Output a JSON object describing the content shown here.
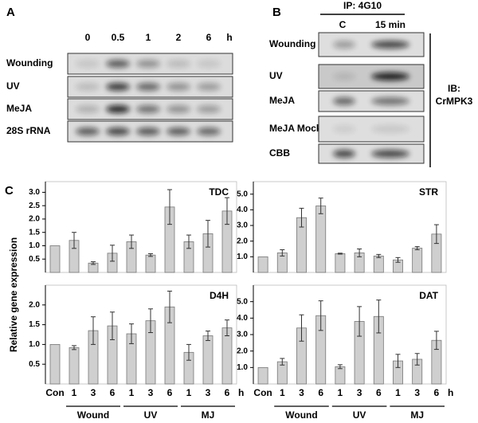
{
  "panels": {
    "A": {
      "label": "A",
      "columns": [
        "0",
        "0.5",
        "1",
        "2",
        "6"
      ],
      "unit": "h",
      "rows": [
        "Wounding",
        "UV",
        "MeJA",
        "28S rRNA"
      ]
    },
    "B": {
      "label": "B",
      "ip": "IP: 4G10",
      "columns": [
        "C",
        "15 min"
      ],
      "rows": [
        "Wounding",
        "UV",
        "MeJA",
        "MeJA Mock",
        "CBB"
      ],
      "ib": [
        "IB:",
        "CrMPK3"
      ]
    },
    "C": {
      "label": "C",
      "y_label": "Relative gene expression",
      "groups": [
        "Wound",
        "UV",
        "MJ"
      ]
    }
  },
  "chart_data": [
    {
      "type": "bar",
      "title": "TDC",
      "color": "#cfcfcf",
      "values": [
        1.0,
        1.2,
        0.35,
        0.72,
        1.15,
        0.65,
        2.45,
        1.15,
        1.45,
        2.3
      ],
      "errors": [
        0,
        0.3,
        0.05,
        0.3,
        0.25,
        0.05,
        0.65,
        0.25,
        0.5,
        0.5
      ],
      "ylim": [
        0,
        3.4
      ],
      "yticks": [
        0.5,
        {
          "value": 1,
          "label": "1.0"
        },
        1.5,
        {
          "value": 2,
          "label": "2.0"
        },
        2.5,
        {
          "value": 3,
          "label": "3.0"
        }
      ]
    },
    {
      "type": "bar",
      "title": "STR",
      "color": "#cfcfcf",
      "values": [
        1.0,
        1.25,
        3.5,
        4.25,
        1.2,
        1.25,
        1.05,
        0.8,
        1.55,
        2.45
      ],
      "errors": [
        0,
        0.2,
        0.6,
        0.5,
        0.03,
        0.25,
        0.1,
        0.15,
        0.1,
        0.6
      ],
      "ylim": [
        0,
        5.8
      ],
      "yticks": [
        {
          "value": 1,
          "label": "1.0"
        },
        {
          "value": 2,
          "label": "2.0"
        },
        {
          "value": 3,
          "label": "3.0"
        },
        {
          "value": 4,
          "label": "4.0"
        },
        {
          "value": 5,
          "label": "5.0"
        }
      ]
    },
    {
      "type": "bar",
      "title": "D4H",
      "color": "#cfcfcf",
      "categories": [
        "Con",
        "1",
        "3",
        "6",
        "1",
        "3",
        "6",
        "1",
        "3",
        "6"
      ],
      "x_unit": "h",
      "values": [
        1.0,
        0.92,
        1.35,
        1.47,
        1.27,
        1.6,
        1.95,
        0.8,
        1.22,
        1.42
      ],
      "errors": [
        0,
        0.05,
        0.35,
        0.35,
        0.25,
        0.3,
        0.4,
        0.2,
        0.12,
        0.2
      ],
      "ylim": [
        0,
        2.5
      ],
      "yticks": [
        0.5,
        {
          "value": 1,
          "label": "1.0"
        },
        1.5,
        {
          "value": 2,
          "label": "2.0"
        }
      ]
    },
    {
      "type": "bar",
      "title": "DAT",
      "color": "#cfcfcf",
      "categories": [
        "Con",
        "1",
        "3",
        "6",
        "1",
        "3",
        "6",
        "1",
        "3",
        "6"
      ],
      "x_unit": "h",
      "values": [
        1.0,
        1.35,
        3.4,
        4.15,
        1.05,
        3.8,
        4.1,
        1.4,
        1.5,
        2.65
      ],
      "errors": [
        0,
        0.2,
        0.8,
        0.9,
        0.12,
        0.9,
        1.0,
        0.4,
        0.35,
        0.55
      ],
      "ylim": [
        0,
        6.0
      ],
      "yticks": [
        {
          "value": 1,
          "label": "1.0"
        },
        {
          "value": 2,
          "label": "2.0"
        },
        {
          "value": 3,
          "label": "3.0"
        },
        {
          "value": 4,
          "label": "4.0"
        },
        {
          "value": 5,
          "label": "5.0"
        }
      ]
    }
  ]
}
